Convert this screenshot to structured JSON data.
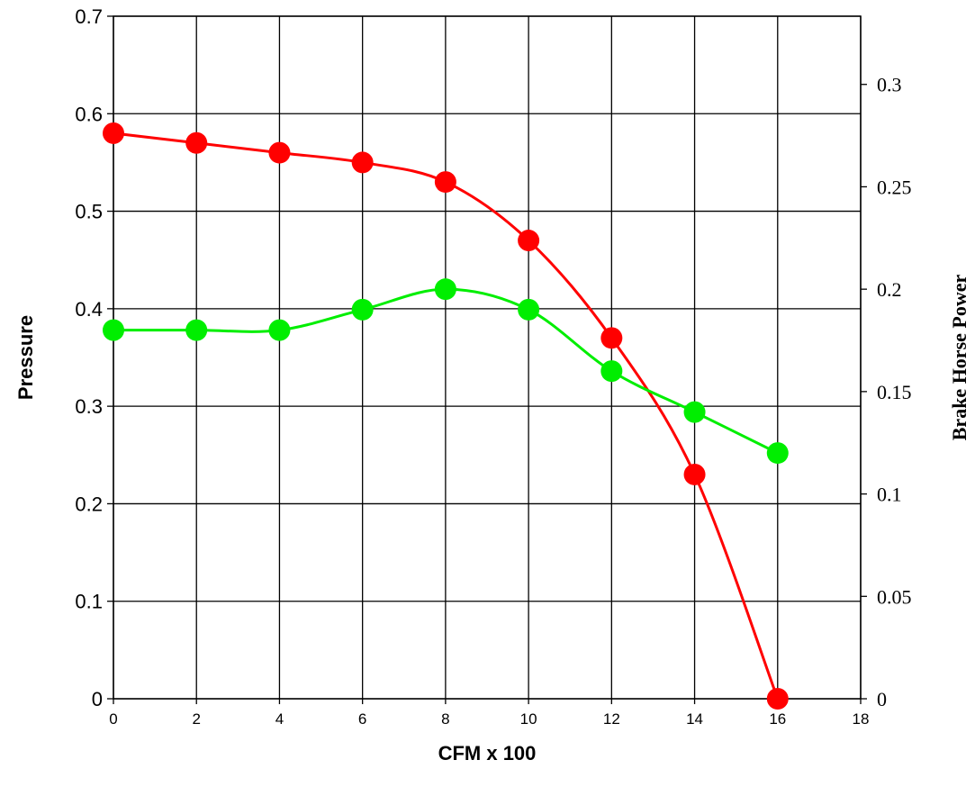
{
  "chart_data": {
    "type": "line",
    "title": "",
    "xlabel": "CFM x 100",
    "ylabel": "Pressure",
    "y2label": "Brake Horse Power",
    "xlim": [
      0,
      18
    ],
    "ylim": [
      0,
      0.7
    ],
    "y2lim": [
      0,
      0.3333
    ],
    "x_ticks": [
      "0",
      "2",
      "4",
      "6",
      "8",
      "10",
      "12",
      "14",
      "16",
      "18"
    ],
    "y_ticks": [
      "0",
      "0.1",
      "0.2",
      "0.3",
      "0.4",
      "0.5",
      "0.6",
      "0.7"
    ],
    "y2_ticks": [
      "0",
      "0.05",
      "0.1",
      "0.15",
      "0.2",
      "0.25",
      "0.3"
    ],
    "grid": true,
    "legend": "none",
    "series": [
      {
        "axis": "left",
        "color": "#ff0000",
        "x": [
          0,
          2,
          4,
          6,
          8,
          10,
          12,
          14,
          16
        ],
        "values": [
          0.58,
          0.57,
          0.56,
          0.55,
          0.53,
          0.47,
          0.37,
          0.23,
          0.0
        ]
      },
      {
        "axis": "right",
        "color": "#00ee00",
        "x": [
          0,
          2,
          4,
          6,
          8,
          10,
          12,
          14,
          16
        ],
        "values": [
          0.18,
          0.18,
          0.18,
          0.19,
          0.2,
          0.19,
          0.16,
          0.14,
          0.12
        ]
      }
    ]
  }
}
